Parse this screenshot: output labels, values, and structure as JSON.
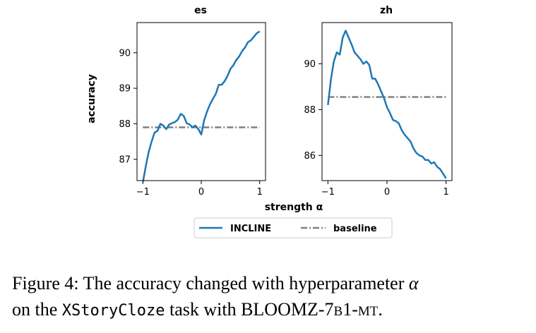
{
  "chart_data": [
    {
      "type": "line",
      "title": "es",
      "xlabel": "strength α",
      "ylabel": "accuracy",
      "xlim": [
        -1.1,
        1.1
      ],
      "ylim": [
        86.4,
        90.85
      ],
      "xticks": [
        -1,
        0,
        1
      ],
      "yticks": [
        87,
        88,
        89,
        90
      ],
      "grid": false,
      "series": [
        {
          "name": "INCLINE",
          "color": "#1f77b4",
          "style": "solid",
          "x": [
            -1.0,
            -0.95,
            -0.9,
            -0.85,
            -0.8,
            -0.75,
            -0.7,
            -0.65,
            -0.6,
            -0.55,
            -0.5,
            -0.45,
            -0.4,
            -0.35,
            -0.3,
            -0.25,
            -0.2,
            -0.15,
            -0.1,
            -0.05,
            0.0,
            0.05,
            0.1,
            0.15,
            0.2,
            0.25,
            0.3,
            0.35,
            0.4,
            0.45,
            0.5,
            0.55,
            0.6,
            0.65,
            0.7,
            0.75,
            0.8,
            0.85,
            0.9,
            0.95,
            1.0
          ],
          "y": [
            86.35,
            86.8,
            87.2,
            87.5,
            87.75,
            87.8,
            88.0,
            87.95,
            87.85,
            87.98,
            88.02,
            88.05,
            88.12,
            88.28,
            88.22,
            88.02,
            87.98,
            87.9,
            87.95,
            87.85,
            87.7,
            88.1,
            88.35,
            88.55,
            88.7,
            88.85,
            89.1,
            89.1,
            89.2,
            89.35,
            89.55,
            89.65,
            89.8,
            89.9,
            90.05,
            90.15,
            90.3,
            90.35,
            90.45,
            90.55,
            90.6
          ]
        },
        {
          "name": "baseline",
          "color": "#808080",
          "style": "dashdot",
          "x": [
            -1.0,
            1.0
          ],
          "y": [
            87.9,
            87.9
          ]
        }
      ]
    },
    {
      "type": "line",
      "title": "zh",
      "xlabel": "strength α",
      "ylabel": "",
      "xlim": [
        -1.1,
        1.1
      ],
      "ylim": [
        84.9,
        91.8
      ],
      "xticks": [
        -1,
        0,
        1
      ],
      "yticks": [
        86,
        88,
        90
      ],
      "grid": false,
      "series": [
        {
          "name": "INCLINE",
          "color": "#1f77b4",
          "style": "solid",
          "x": [
            -1.0,
            -0.95,
            -0.9,
            -0.85,
            -0.8,
            -0.75,
            -0.7,
            -0.65,
            -0.6,
            -0.55,
            -0.5,
            -0.45,
            -0.4,
            -0.35,
            -0.3,
            -0.25,
            -0.2,
            -0.15,
            -0.1,
            -0.05,
            0.0,
            0.05,
            0.1,
            0.15,
            0.2,
            0.25,
            0.3,
            0.35,
            0.4,
            0.45,
            0.5,
            0.55,
            0.6,
            0.65,
            0.7,
            0.75,
            0.8,
            0.85,
            0.9,
            0.95,
            1.0
          ],
          "y": [
            88.2,
            89.3,
            90.1,
            90.5,
            90.4,
            91.15,
            91.45,
            91.15,
            90.85,
            90.5,
            90.35,
            90.2,
            90.0,
            90.1,
            89.95,
            89.35,
            89.35,
            89.1,
            88.8,
            88.5,
            88.1,
            87.85,
            87.55,
            87.5,
            87.4,
            87.1,
            86.9,
            86.75,
            86.6,
            86.3,
            86.1,
            86.0,
            85.95,
            85.8,
            85.8,
            85.65,
            85.7,
            85.5,
            85.4,
            85.2,
            85.0
          ]
        },
        {
          "name": "baseline",
          "color": "#808080",
          "style": "dashdot",
          "x": [
            -1.0,
            1.0
          ],
          "y": [
            88.55,
            88.55
          ]
        }
      ]
    }
  ],
  "legend": {
    "placement": "bottom-center",
    "entries": [
      {
        "label": "INCLINE",
        "color": "#1f77b4",
        "style": "solid"
      },
      {
        "label": "baseline",
        "color": "#808080",
        "style": "dashdot"
      }
    ]
  },
  "caption": {
    "prefix": "Figure 4: The accuracy changed with hyperparameter ",
    "symbol": "α",
    "line2_start": "on the ",
    "task": "XStoryCloze",
    "mid": " task with ",
    "model_main": "BLOOMZ-7",
    "model_sc1": "B",
    "model_one": "1-",
    "model_sc2": "MT",
    "end": "."
  }
}
